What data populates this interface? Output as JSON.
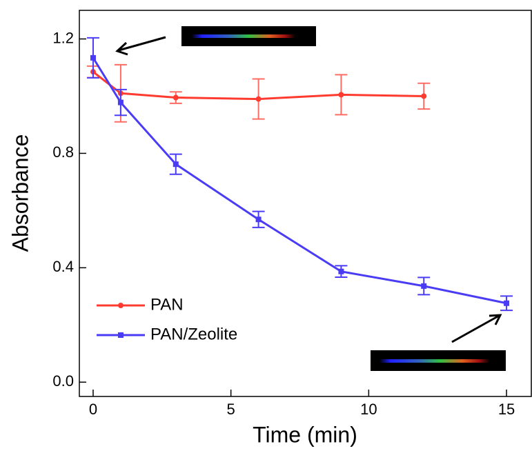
{
  "chart_data": {
    "type": "line",
    "x_label": "Time (min)",
    "y_label": "Absorbance",
    "xlim": [
      -0.5,
      15.9
    ],
    "ylim": [
      -0.05,
      1.3
    ],
    "xticks": [
      0,
      5,
      10,
      15
    ],
    "yticks": [
      {
        "value": 0,
        "label": "0.0"
      },
      0.4,
      0.8,
      1.2
    ],
    "legend": "lower left",
    "series": [
      {
        "name": "PAN",
        "color": "#ff3b2f",
        "marker": "circle",
        "x": [
          0,
          1,
          3,
          6,
          9,
          12
        ],
        "values": [
          1.085,
          1.01,
          0.995,
          0.99,
          1.005,
          1.0
        ],
        "errors": [
          0.02,
          0.1,
          0.02,
          0.07,
          0.07,
          0.045
        ]
      },
      {
        "name": "PAN/Zeolite",
        "color": "#4a3cf5",
        "marker": "square",
        "x": [
          0,
          1,
          3,
          6,
          9,
          12,
          15
        ],
        "values": [
          1.134,
          0.978,
          0.762,
          0.569,
          0.387,
          0.336,
          0.276
        ],
        "errors": [
          0.07,
          0.045,
          0.035,
          0.028,
          0.02,
          0.03,
          0.025
        ]
      }
    ]
  }
}
